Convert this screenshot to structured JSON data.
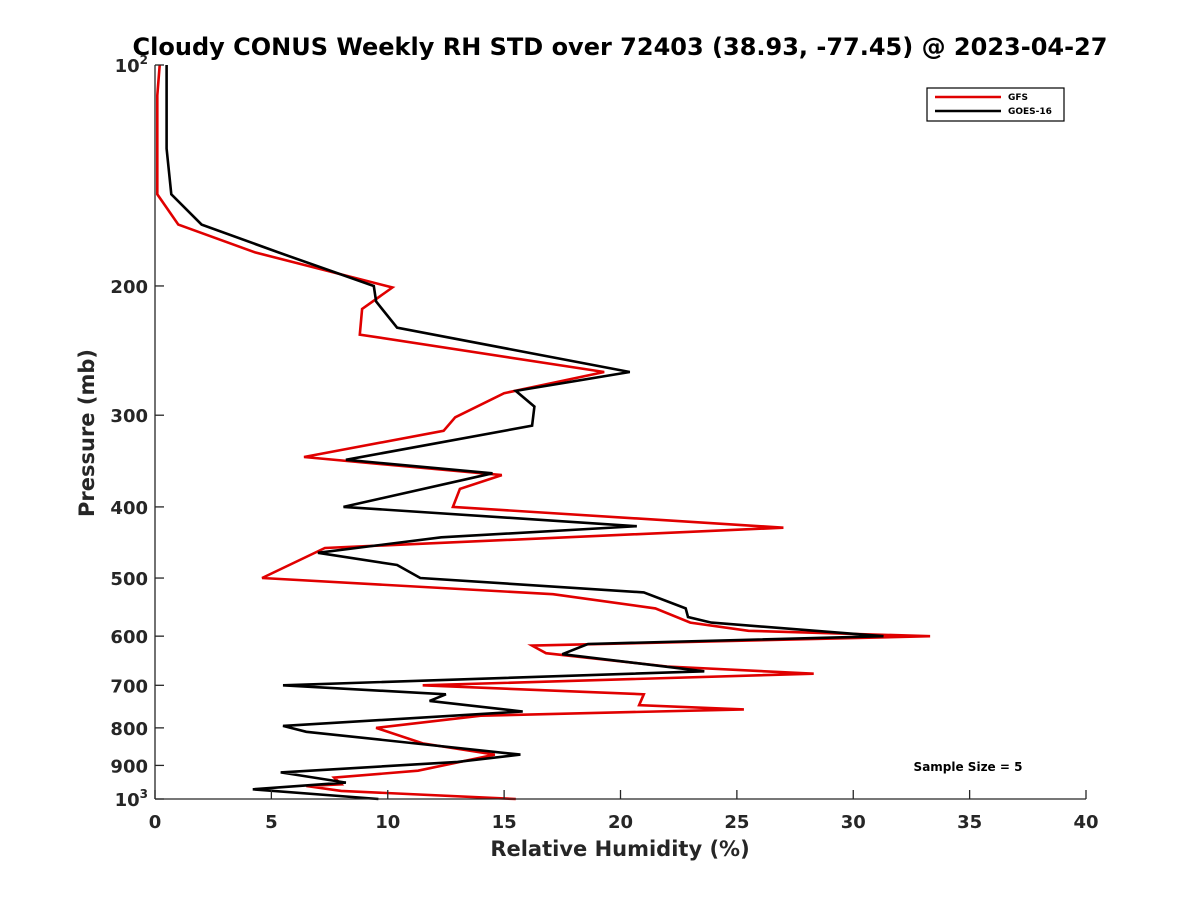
{
  "chart_data": {
    "type": "line",
    "title": "Cloudy CONUS Weekly RH STD over 72403 (38.93, -77.45) @ 2023-04-27",
    "xlabel": "Relative Humidity (%)",
    "ylabel": "Pressure (mb)",
    "xlim": [
      0,
      40
    ],
    "ylim": [
      1000,
      100
    ],
    "yscale": "log",
    "y_reversed": true,
    "x_ticks": [
      0,
      5,
      10,
      15,
      20,
      25,
      30,
      35,
      40
    ],
    "x_tick_labels": [
      "0",
      "5",
      "10",
      "15",
      "20",
      "25",
      "30",
      "35",
      "40"
    ],
    "y_ticks": [
      100,
      200,
      300,
      400,
      500,
      600,
      700,
      800,
      900,
      1000
    ],
    "y_tick_labels": [
      {
        "base": "10",
        "sup": "2"
      },
      {
        "base": "200",
        "sup": ""
      },
      {
        "base": "300",
        "sup": ""
      },
      {
        "base": "400",
        "sup": ""
      },
      {
        "base": "500",
        "sup": ""
      },
      {
        "base": "600",
        "sup": ""
      },
      {
        "base": "700",
        "sup": ""
      },
      {
        "base": "800",
        "sup": ""
      },
      {
        "base": "900",
        "sup": ""
      },
      {
        "base": "10",
        "sup": "3"
      }
    ],
    "grid": false,
    "legend_position": "top-right",
    "series": [
      {
        "name": "GFS",
        "color": "#e00000",
        "points": [
          [
            0.2,
            100
          ],
          [
            0.1,
            110
          ],
          [
            0.1,
            130
          ],
          [
            0.1,
            150
          ],
          [
            1.0,
            165
          ],
          [
            4.3,
            180
          ],
          [
            10.2,
            201
          ],
          [
            8.9,
            215
          ],
          [
            8.8,
            233
          ],
          [
            19.3,
            262
          ],
          [
            15.0,
            280
          ],
          [
            12.9,
            302
          ],
          [
            12.4,
            315
          ],
          [
            6.4,
            342
          ],
          [
            14.9,
            362
          ],
          [
            13.1,
            378
          ],
          [
            12.8,
            400
          ],
          [
            27.0,
            427
          ],
          [
            7.3,
            455
          ],
          [
            4.6,
            500
          ],
          [
            17.1,
            526
          ],
          [
            21.5,
            550
          ],
          [
            23.0,
            575
          ],
          [
            25.5,
            590
          ],
          [
            33.3,
            600
          ],
          [
            16.2,
            618
          ],
          [
            16.8,
            633
          ],
          [
            22.0,
            660
          ],
          [
            28.3,
            675
          ],
          [
            11.5,
            700
          ],
          [
            21.0,
            720
          ],
          [
            20.8,
            745
          ],
          [
            25.3,
            755
          ],
          [
            14.0,
            770
          ],
          [
            9.5,
            800
          ],
          [
            11.5,
            840
          ],
          [
            14.6,
            870
          ],
          [
            11.3,
            915
          ],
          [
            7.7,
            935
          ],
          [
            8.0,
            955
          ],
          [
            6.5,
            960
          ],
          [
            8.0,
            975
          ],
          [
            15.5,
            1000
          ]
        ]
      },
      {
        "name": "GOES-16",
        "color": "#000000",
        "points": [
          [
            0.5,
            100
          ],
          [
            0.5,
            115
          ],
          [
            0.5,
            130
          ],
          [
            0.7,
            150
          ],
          [
            2.0,
            165
          ],
          [
            5.3,
            180
          ],
          [
            9.4,
            200
          ],
          [
            9.5,
            210
          ],
          [
            10.4,
            228
          ],
          [
            20.4,
            262
          ],
          [
            15.5,
            278
          ],
          [
            16.3,
            292
          ],
          [
            16.2,
            310
          ],
          [
            8.2,
            345
          ],
          [
            14.5,
            360
          ],
          [
            8.1,
            400
          ],
          [
            20.7,
            425
          ],
          [
            12.3,
            440
          ],
          [
            7.0,
            462
          ],
          [
            10.4,
            480
          ],
          [
            11.4,
            500
          ],
          [
            21.0,
            523
          ],
          [
            22.8,
            550
          ],
          [
            22.9,
            565
          ],
          [
            23.9,
            575
          ],
          [
            31.3,
            600
          ],
          [
            18.6,
            615
          ],
          [
            17.5,
            635
          ],
          [
            23.6,
            670
          ],
          [
            5.5,
            700
          ],
          [
            12.5,
            720
          ],
          [
            11.8,
            735
          ],
          [
            15.8,
            760
          ],
          [
            5.5,
            795
          ],
          [
            6.5,
            810
          ],
          [
            15.7,
            870
          ],
          [
            13.0,
            890
          ],
          [
            5.4,
            920
          ],
          [
            8.2,
            950
          ],
          [
            4.2,
            970
          ],
          [
            9.6,
            1000
          ]
        ]
      }
    ],
    "annotations": [
      "Sample Size = 5"
    ]
  }
}
